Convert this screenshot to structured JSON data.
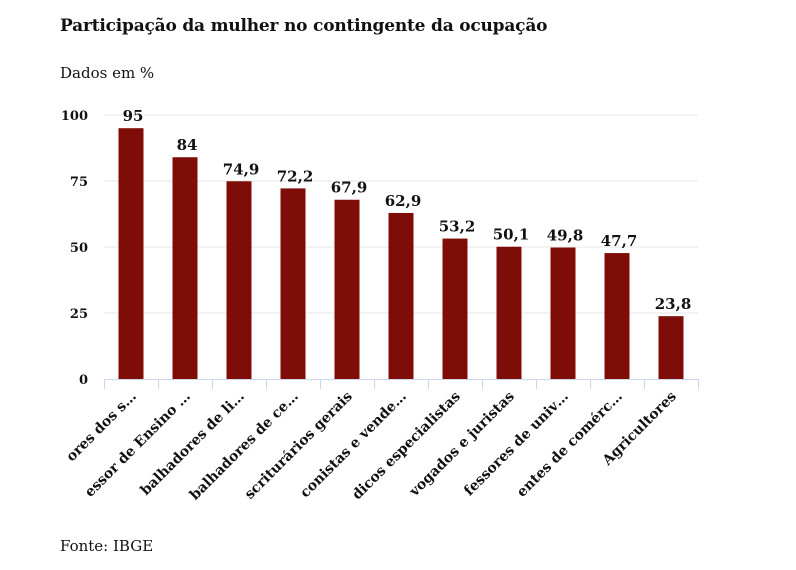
{
  "header": {
    "title": "Participação da mulher no contingente da ocupação",
    "subtitle": "Dados em %"
  },
  "footer": {
    "source": "Fonte: IBGE"
  },
  "colors": {
    "bar": "#7f0d07",
    "grid": "#e6e6e6",
    "axis": "#ccd6eb"
  },
  "chart_data": {
    "type": "bar",
    "title": "Participação da mulher no contingente da ocupação",
    "subtitle": "Dados em %",
    "xlabel": "",
    "ylabel": "",
    "ylim": [
      0,
      100
    ],
    "yticks": [
      0,
      25,
      50,
      75,
      100
    ],
    "ytick_labels": [
      "0",
      "25",
      "50",
      "75",
      "100"
    ],
    "grid": true,
    "legend": "none",
    "categories": [
      "ores dos s…",
      "essor de Ensino …",
      "balhadores de li…",
      "balhadores de ce…",
      "scriturários gerais",
      "conistas e vende…",
      "dicos especialistas",
      "vogados e juristas",
      "fessores de univ…",
      "entes de comérc…",
      "Agricultores"
    ],
    "values": [
      95,
      84,
      74.9,
      72.2,
      67.9,
      62.9,
      53.2,
      50.1,
      49.8,
      47.7,
      23.8
    ],
    "value_labels": [
      "95",
      "84",
      "74,9",
      "72,2",
      "67,9",
      "62,9",
      "53,2",
      "50,1",
      "49,8",
      "47,7",
      "23,8"
    ],
    "source": "Fonte: IBGE"
  }
}
